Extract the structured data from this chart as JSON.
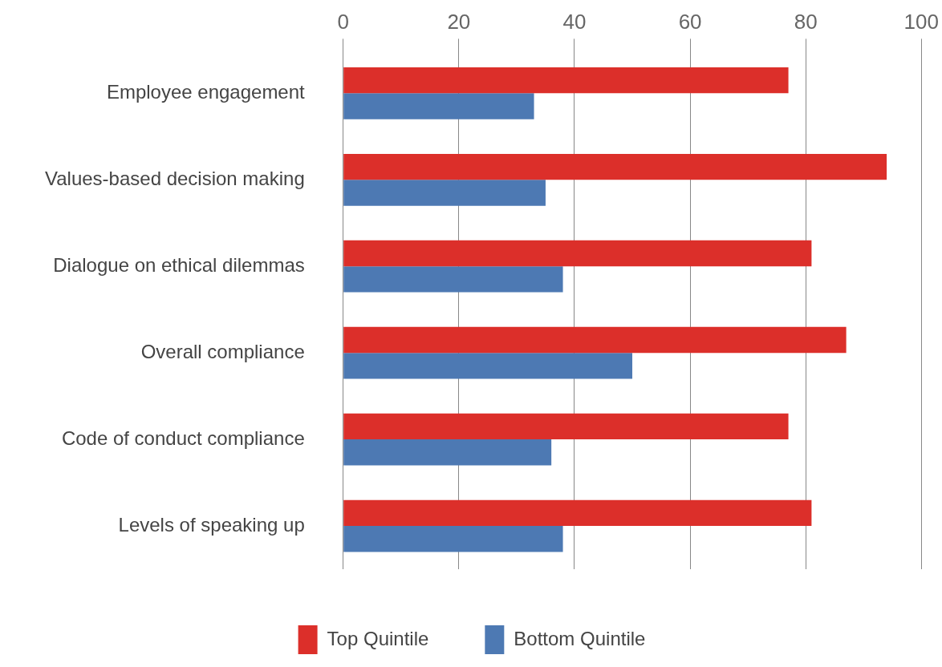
{
  "chart_data": {
    "type": "bar",
    "orientation": "horizontal",
    "categories": [
      "Employee engagement",
      "Values-based decision making",
      "Dialogue on ethical dilemmas",
      "Overall compliance",
      "Code of conduct compliance",
      "Levels of speaking up"
    ],
    "series": [
      {
        "name": "Top Quintile",
        "color": "#dc2f2a",
        "values": [
          77,
          94,
          81,
          87,
          77,
          81
        ]
      },
      {
        "name": "Bottom Quintile",
        "color": "#4d79b3",
        "values": [
          33,
          35,
          38,
          50,
          36,
          38
        ]
      }
    ],
    "xlim": [
      0,
      100
    ],
    "xticks": [
      0,
      20,
      40,
      60,
      80,
      100
    ],
    "grid": "x",
    "legend": "bottom"
  }
}
